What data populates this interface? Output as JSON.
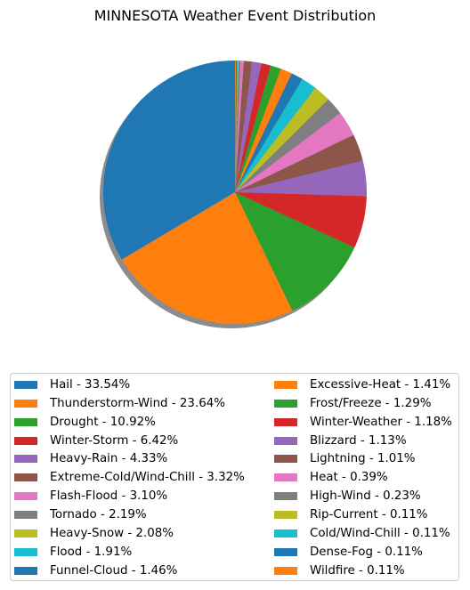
{
  "chart_data": {
    "type": "pie",
    "title": "MINNESOTA Weather Event Distribution",
    "start_angle_deg": 90,
    "direction": "counterclockwise",
    "shadow": true,
    "legend_placement": "bottom",
    "legend_columns": 2,
    "slices": [
      {
        "label": "Hail - 33.54%",
        "value": 33.54,
        "color": "#1f77b4"
      },
      {
        "label": "Thunderstorm-Wind - 23.64%",
        "value": 23.64,
        "color": "#ff7f0e"
      },
      {
        "label": "Drought - 10.92%",
        "value": 10.92,
        "color": "#2ca02c"
      },
      {
        "label": "Winter-Storm - 6.42%",
        "value": 6.42,
        "color": "#d62728"
      },
      {
        "label": "Heavy-Rain - 4.33%",
        "value": 4.33,
        "color": "#9467bd"
      },
      {
        "label": "Extreme-Cold/Wind-Chill - 3.32%",
        "value": 3.32,
        "color": "#8c564b"
      },
      {
        "label": "Flash-Flood - 3.10%",
        "value": 3.1,
        "color": "#e377c2"
      },
      {
        "label": "Tornado - 2.19%",
        "value": 2.19,
        "color": "#7f7f7f"
      },
      {
        "label": "Heavy-Snow - 2.08%",
        "value": 2.08,
        "color": "#bcbd22"
      },
      {
        "label": "Flood - 1.91%",
        "value": 1.91,
        "color": "#17becf"
      },
      {
        "label": "Funnel-Cloud - 1.46%",
        "value": 1.46,
        "color": "#1f77b4"
      },
      {
        "label": "Excessive-Heat - 1.41%",
        "value": 1.41,
        "color": "#ff7f0e"
      },
      {
        "label": "Frost/Freeze - 1.29%",
        "value": 1.29,
        "color": "#2ca02c"
      },
      {
        "label": "Winter-Weather - 1.18%",
        "value": 1.18,
        "color": "#d62728"
      },
      {
        "label": "Blizzard - 1.13%",
        "value": 1.13,
        "color": "#9467bd"
      },
      {
        "label": "Lightning - 1.01%",
        "value": 1.01,
        "color": "#8c564b"
      },
      {
        "label": "Heat - 0.39%",
        "value": 0.39,
        "color": "#e377c2"
      },
      {
        "label": "High-Wind - 0.23%",
        "value": 0.23,
        "color": "#7f7f7f"
      },
      {
        "label": "Rip-Current - 0.11%",
        "value": 0.11,
        "color": "#bcbd22"
      },
      {
        "label": "Cold/Wind-Chill - 0.11%",
        "value": 0.11,
        "color": "#17becf"
      },
      {
        "label": "Dense-Fog - 0.11%",
        "value": 0.11,
        "color": "#1f77b4"
      },
      {
        "label": "Wildfire - 0.11%",
        "value": 0.11,
        "color": "#ff7f0e"
      }
    ]
  }
}
